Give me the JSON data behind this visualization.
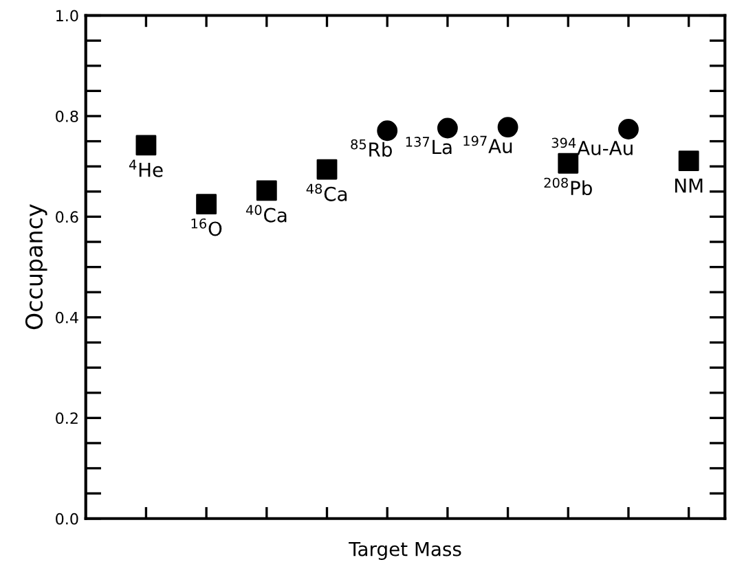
{
  "chart_data": {
    "type": "scatter",
    "xlabel": "Target Mass",
    "ylabel": "Occupancy",
    "categories": [
      null,
      null,
      null,
      null,
      null,
      null,
      null,
      null,
      null,
      null
    ],
    "series": [
      {
        "color": "#000000",
        "marker": "square",
        "values": [
          0.742,
          0.625,
          0.652,
          0.694,
          null,
          null,
          null,
          0.706,
          null,
          0.711
        ]
      },
      {
        "color": "#000000",
        "marker": "circle",
        "values": [
          null,
          null,
          null,
          null,
          0.771,
          0.776,
          0.778,
          null,
          0.774,
          null
        ]
      }
    ],
    "annotations": [
      "$^{4}$He",
      "$^{16}$O",
      "$^{40}$Ca",
      "$^{48}$Ca",
      "$^{85}$Rb",
      "$^{137}$La",
      "$^{197}$Au",
      "$^{208}$Pb",
      "$^{394}$Au-Au",
      "NM"
    ],
    "ylim": [
      0,
      1
    ],
    "yticks": [
      {
        "value": 0,
        "label": "0.0"
      },
      {
        "value": 0.05,
        "label": null
      },
      {
        "value": 0.1,
        "label": null
      },
      {
        "value": 0.15,
        "label": null
      },
      {
        "value": 0.2,
        "label": "0.2"
      },
      {
        "value": 0.25,
        "label": null
      },
      {
        "value": 0.3,
        "label": null
      },
      {
        "value": 0.35,
        "label": null
      },
      {
        "value": 0.4,
        "label": "0.4"
      },
      {
        "value": 0.45,
        "label": null
      },
      {
        "value": 0.5,
        "label": null
      },
      {
        "value": 0.55,
        "label": null
      },
      {
        "value": 0.6,
        "label": "0.6"
      },
      {
        "value": 0.65,
        "label": null
      },
      {
        "value": 0.7,
        "label": null
      },
      {
        "value": 0.75,
        "label": null
      },
      {
        "value": 0.8,
        "label": "0.8"
      },
      {
        "value": 0.85,
        "label": null
      },
      {
        "value": 0.9,
        "label": null
      },
      {
        "value": 0.95,
        "label": null
      },
      {
        "value": 1,
        "label": "1.0"
      }
    ],
    "tick_labels": "y",
    "grid": false,
    "legend": false
  }
}
